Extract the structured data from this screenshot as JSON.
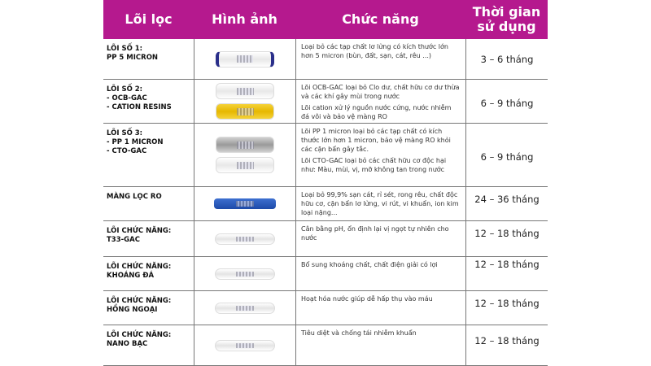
{
  "header": {
    "col1": "Lõi lọc",
    "col2": "Hình ảnh",
    "col3": "Chức năng",
    "col4": "Thời gian sử dụng"
  },
  "rows": [
    {
      "name": [
        "LÕI SỐ 1:",
        "PP 5 MICRON"
      ],
      "images": [
        "pp5-filter"
      ],
      "desc": [
        "Loại bỏ các tạp chất lơ lửng có kích thước lớn hơn 5 micron (bùn, đất, sạn, cát, rêu ...)"
      ],
      "duration": "3 – 6 tháng"
    },
    {
      "name": [
        "LÕI SỐ 2:",
        "- OCB-GAC",
        "- CATION RESINS"
      ],
      "images": [
        "ocb-gac-filter",
        "cation-filter"
      ],
      "desc": [
        "Lõi OCB-GAC loại bỏ Clo dư, chất hữu cơ dư thừa và các khí gây mùi trong nước",
        "Lõi cation xử lý nguồn nước cứng, nước nhiễm đá vôi và bảo vệ màng RO"
      ],
      "duration": "6 – 9 tháng"
    },
    {
      "name": [
        "LÕI SỐ 3:",
        "- PP 1 MICRON",
        "- CTO-GAC"
      ],
      "images": [
        "pp1-filter",
        "cto-gac-filter"
      ],
      "desc": [
        "Lõi PP 1 micron loại bỏ các tạp chất có kích thước lớn hơn 1 micron, bảo vệ màng RO khỏi các cặn bẩn gây tắc.",
        "Lõi CTO-GAC loại bỏ các chất hữu cơ độc hại như: Màu, mùi, vị, mỡ không tan trong nước"
      ],
      "duration": "6 – 9 tháng"
    },
    {
      "name": [
        "MÀNG LỌC RO"
      ],
      "images": [
        "ro-membrane"
      ],
      "desc": [
        "Loại bỏ 99,9% sạn cát, rỉ sét, rong rêu, chất độc hữu cơ, cặn bẩn lơ lửng, vi rút, vi khuẩn, ion kim loại nặng..."
      ],
      "duration": "24 – 36 tháng"
    },
    {
      "name": [
        "LÕI CHỨC NĂNG:",
        "T33-GAC"
      ],
      "images": [
        "inline-filter"
      ],
      "desc": [
        "Cân bằng pH, ổn định lại vị ngọt tự nhiên cho nước"
      ],
      "duration": "12 – 18 tháng"
    },
    {
      "name": [
        "LÕI CHỨC NĂNG:",
        "KHOÁNG ĐÁ"
      ],
      "images": [
        "inline-filter"
      ],
      "desc": [
        "Bổ sung khoáng chất, chất điện giải có lợi"
      ],
      "duration": "12 – 18 tháng"
    },
    {
      "name": [
        "LÕI CHỨC NĂNG:",
        "HỒNG NGOẠI"
      ],
      "images": [
        "inline-filter"
      ],
      "desc": [
        "Hoạt hóa nước giúp dễ hấp thụ vào máu"
      ],
      "duration": "12 – 18 tháng"
    },
    {
      "name": [
        "LÕI CHỨC NĂNG:",
        "NANO BẠC"
      ],
      "images": [
        "inline-filter"
      ],
      "desc": [
        "Tiêu diệt và chống tái nhiễm khuẩn"
      ],
      "duration": "12 – 18 tháng"
    }
  ],
  "colors": {
    "header_bg": "#b5198e"
  }
}
